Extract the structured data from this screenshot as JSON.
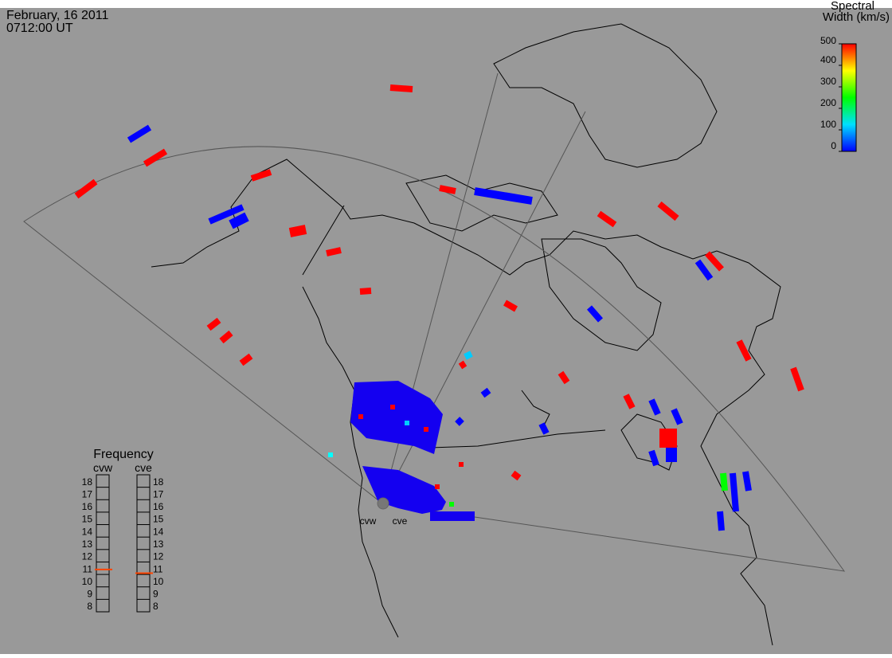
{
  "header": {
    "date": "February, 16 2011",
    "time": "0712:00 UT"
  },
  "colorbar": {
    "title_line1": "Spectral",
    "title_line2": "Width (km/s)",
    "ticks": [
      0,
      100,
      200,
      300,
      400,
      500
    ],
    "lim": [
      0,
      500
    ],
    "colors": [
      "#0000ff",
      "#00e0ff",
      "#00ff00",
      "#ffff00",
      "#ff0000"
    ]
  },
  "frequency": {
    "title": "Frequency",
    "ticks": [
      8,
      9,
      10,
      11,
      12,
      13,
      14,
      15,
      16,
      17,
      18
    ],
    "ylim": [
      7.5,
      18.5
    ],
    "marker_color": "#ff4400",
    "radars": [
      {
        "name": "cvw",
        "value": 10.9
      },
      {
        "name": "cve",
        "value": 10.6
      }
    ]
  },
  "stations": [
    "cvw",
    "cve"
  ]
}
